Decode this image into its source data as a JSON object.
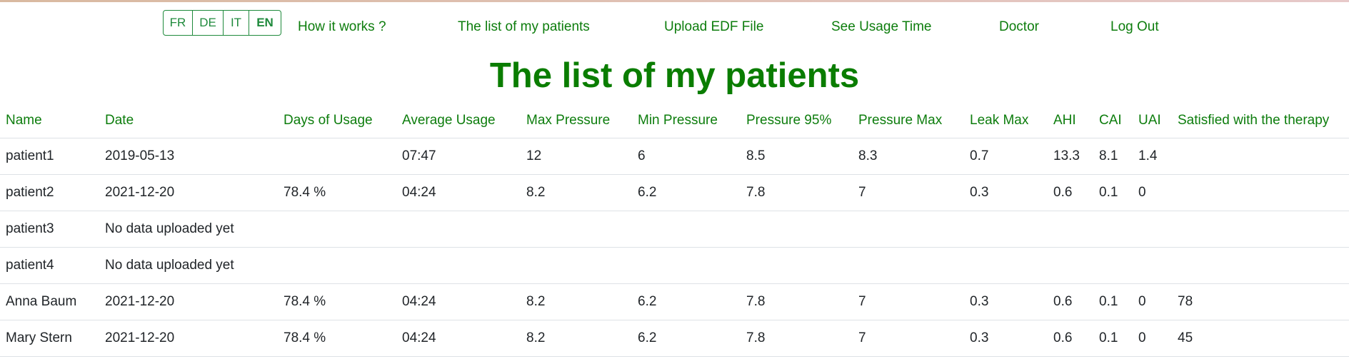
{
  "colors": {
    "accent_green": "#0d7d0d",
    "good": "#0d8a0d",
    "bad": "#e8000b"
  },
  "languages": [
    {
      "label": "FR",
      "active": false
    },
    {
      "label": "DE",
      "active": false
    },
    {
      "label": "IT",
      "active": false
    },
    {
      "label": "EN",
      "active": true
    }
  ],
  "nav": {
    "how_it_works": "How it works ?",
    "patients_list": "The list of my patients",
    "upload_edf": "Upload EDF File",
    "usage_time": "See Usage Time",
    "doctor": "Doctor",
    "logout": "Log Out"
  },
  "page_title": "The list of my patients",
  "table": {
    "headers": [
      "Name",
      "Date",
      "Days of Usage",
      "Average Usage",
      "Max Pressure",
      "Min Pressure",
      "Pressure 95%",
      "Pressure Max",
      "Leak Max",
      "AHI",
      "CAI",
      "UAI",
      "Satisfied with the therapy"
    ],
    "rows": [
      {
        "name": "patient1",
        "date": "2019-05-13",
        "days_usage": "",
        "avg_usage": "07:47",
        "max_pressure": "12",
        "min_pressure": "6",
        "pressure_95": "8.5",
        "pressure_max": "8.3",
        "leak_max": "0.7",
        "ahi": "13.3",
        "cai": "8.1",
        "uai": "1.4",
        "satisfied": ""
      },
      {
        "name": "patient2",
        "date": "2021-12-20",
        "days_usage": "78.4 %",
        "avg_usage": "04:24",
        "max_pressure": "8.2",
        "min_pressure": "6.2",
        "pressure_95": "7.8",
        "pressure_max": "7",
        "leak_max": "0.3",
        "ahi": "0.6",
        "cai": "0.1",
        "uai": "0",
        "satisfied": ""
      },
      {
        "name": "patient3",
        "date": "No data uploaded yet"
      },
      {
        "name": "patient4",
        "date": "No data uploaded yet"
      },
      {
        "name": "Anna Baum",
        "date": "2021-12-20",
        "days_usage": "78.4 %",
        "avg_usage": "04:24",
        "max_pressure": "8.2",
        "min_pressure": "6.2",
        "pressure_95": "7.8",
        "pressure_max": "7",
        "leak_max": "0.3",
        "ahi": "0.6",
        "cai": "0.1",
        "uai": "0",
        "satisfied": "78"
      },
      {
        "name": "Mary Stern",
        "date": "2021-12-20",
        "days_usage": "78.4 %",
        "avg_usage": "04:24",
        "max_pressure": "8.2",
        "min_pressure": "6.2",
        "pressure_95": "7.8",
        "pressure_max": "7",
        "leak_max": "0.3",
        "ahi": "0.6",
        "cai": "0.1",
        "uai": "0",
        "satisfied": "45"
      }
    ]
  }
}
